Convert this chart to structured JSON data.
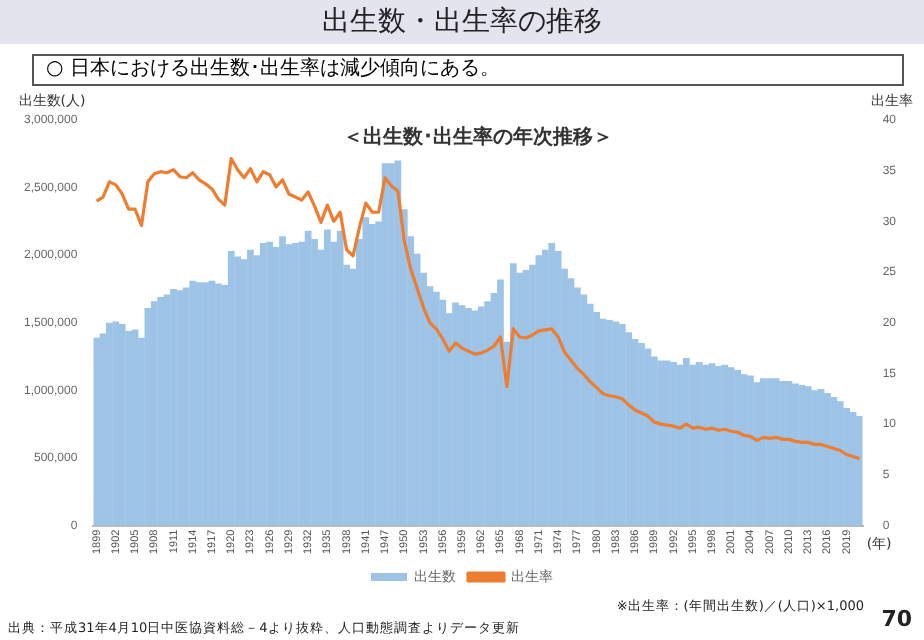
{
  "chart_data": {
    "type": "bar",
    "title": "出生数・出生率の推移",
    "subtitle": "○ 日本における出生数･出生率は減少傾向にある。",
    "xlabel": "(年)",
    "ylabel": "出生数(人)",
    "y2label": "出生率",
    "annotations": [
      "＜出生数･出生率の年次推移＞",
      "※出生率：(年間出生数)／(人口)×1,000",
      "出典：平成31年4月10日中医協資料総－4より抜粋、人口動態調査よりデータ更新",
      "70"
    ],
    "categories": [
      "1899",
      null,
      null,
      "1902",
      null,
      null,
      "1905",
      null,
      null,
      "1908",
      null,
      null,
      "1911",
      null,
      null,
      "1914",
      null,
      null,
      "1917",
      null,
      null,
      "1920",
      null,
      null,
      "1923",
      null,
      null,
      "1926",
      null,
      null,
      "1929",
      null,
      null,
      "1932",
      null,
      null,
      "1935",
      null,
      null,
      "1938",
      null,
      null,
      "1941",
      null,
      null,
      "1947",
      null,
      null,
      "1950",
      null,
      null,
      "1953",
      null,
      null,
      "1956",
      null,
      null,
      "1959",
      null,
      null,
      "1962",
      null,
      null,
      "1965",
      null,
      null,
      "1968",
      null,
      null,
      "1971",
      null,
      null,
      "1974",
      null,
      null,
      "1977",
      null,
      null,
      "1980",
      null,
      null,
      "1983",
      null,
      null,
      "1986",
      null,
      null,
      "1989",
      null,
      null,
      "1992",
      null,
      null,
      "1995",
      null,
      null,
      "1998",
      null,
      null,
      "2001",
      null,
      null,
      "2004",
      null,
      null,
      "2007",
      null,
      null,
      "2010",
      null,
      null,
      "2013",
      null,
      null,
      "2016",
      null,
      null,
      "2019",
      null,
      null
    ],
    "series": [
      {
        "name": "出生数",
        "color": "#9dc3e6",
        "values": [
          1390000,
          1420000,
          1500000,
          1510000,
          1490000,
          1440000,
          1450000,
          1390000,
          1610000,
          1660000,
          1690000,
          1710000,
          1750000,
          1740000,
          1760000,
          1810000,
          1800000,
          1800000,
          1810000,
          1790000,
          1780000,
          2030000,
          1990000,
          1970000,
          2040000,
          2000000,
          2090000,
          2100000,
          2060000,
          2140000,
          2080000,
          2090000,
          2100000,
          2180000,
          2120000,
          2040000,
          2190000,
          2100000,
          2180000,
          1930000,
          1900000,
          2120000,
          2280000,
          2230000,
          2250000,
          2680000,
          2680000,
          2700000,
          2340000,
          2140000,
          2010000,
          1870000,
          1770000,
          1730000,
          1670000,
          1570000,
          1650000,
          1630000,
          1610000,
          1590000,
          1620000,
          1660000,
          1720000,
          1820000,
          1360000,
          1940000,
          1870000,
          1890000,
          1930000,
          2000000,
          2040000,
          2090000,
          2030000,
          1900000,
          1830000,
          1760000,
          1710000,
          1640000,
          1580000,
          1530000,
          1520000,
          1510000,
          1490000,
          1430000,
          1380000,
          1350000,
          1310000,
          1250000,
          1220000,
          1220000,
          1210000,
          1190000,
          1240000,
          1190000,
          1210000,
          1190000,
          1200000,
          1180000,
          1190000,
          1170000,
          1150000,
          1120000,
          1110000,
          1060000,
          1090000,
          1090000,
          1090000,
          1070000,
          1070000,
          1050000,
          1040000,
          1030000,
          1000000,
          1010000,
          980000,
          950000,
          920000,
          870000,
          840000,
          810000
        ]
      },
      {
        "name": "出生率",
        "type": "line",
        "axis": "y2",
        "color": "#ed7d31",
        "values": [
          32.0,
          32.4,
          33.9,
          33.6,
          32.7,
          31.2,
          31.2,
          29.6,
          33.9,
          34.7,
          34.9,
          34.8,
          35.1,
          34.4,
          34.3,
          34.8,
          34.1,
          33.7,
          33.2,
          32.2,
          31.6,
          36.2,
          35.1,
          34.3,
          35.2,
          33.9,
          34.9,
          34.6,
          33.4,
          34.1,
          32.7,
          32.4,
          32.1,
          32.9,
          31.5,
          29.9,
          31.6,
          30.0,
          30.9,
          27.2,
          26.6,
          29.4,
          31.8,
          30.9,
          30.9,
          34.3,
          33.5,
          33.0,
          28.1,
          25.3,
          23.4,
          21.5,
          20.0,
          19.4,
          18.4,
          17.2,
          18.0,
          17.5,
          17.2,
          16.9,
          17.0,
          17.3,
          17.7,
          18.6,
          13.7,
          19.4,
          18.6,
          18.5,
          18.8,
          19.2,
          19.3,
          19.4,
          18.6,
          17.1,
          16.3,
          15.5,
          14.9,
          14.2,
          13.6,
          13.0,
          12.8,
          12.7,
          12.5,
          11.9,
          11.4,
          11.1,
          10.8,
          10.2,
          10.0,
          9.9,
          9.8,
          9.6,
          10.0,
          9.6,
          9.7,
          9.5,
          9.6,
          9.4,
          9.5,
          9.3,
          9.2,
          8.9,
          8.8,
          8.4,
          8.7,
          8.6,
          8.7,
          8.5,
          8.5,
          8.3,
          8.2,
          8.2,
          8.0,
          8.0,
          7.8,
          7.6,
          7.4,
          7.0,
          6.8,
          6.6
        ]
      }
    ],
    "ylim": [
      0,
      3000000
    ],
    "yticks": [
      0,
      {
        "value": 500000,
        "label": "500,000"
      },
      {
        "value": 1000000,
        "label": "1,000,000"
      },
      {
        "value": 1500000,
        "label": "1,500,000"
      },
      {
        "value": 2000000,
        "label": "2,000,000"
      },
      {
        "value": 2500000,
        "label": "2,500,000"
      },
      {
        "value": 3000000,
        "label": "3,000,000"
      }
    ],
    "y2lim": [
      0,
      40
    ],
    "y2ticks": [
      0,
      5,
      10,
      15,
      20,
      25,
      30,
      35,
      40
    ],
    "grid": false,
    "legend": "bottom",
    "marker": "none"
  }
}
